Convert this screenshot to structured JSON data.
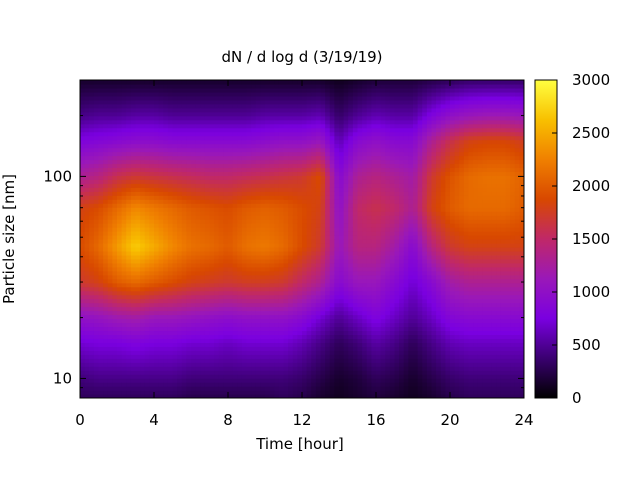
{
  "chart_data": {
    "type": "heatmap",
    "title": "dN / d log d (3/19/19)",
    "xlabel": "Time [hour]",
    "ylabel": "Particle size [nm]",
    "xlim": [
      0,
      24
    ],
    "ylim": [
      8,
      300
    ],
    "y_scale": "log",
    "x_ticks": [
      0,
      4,
      8,
      12,
      16,
      20,
      24
    ],
    "y_ticks": [
      10,
      100
    ],
    "colorbar": {
      "range": [
        0,
        3000
      ],
      "ticks": [
        0,
        500,
        1000,
        1500,
        2000,
        2500,
        3000
      ],
      "colormap": [
        "#000000",
        "#3a0070",
        "#7a00e0",
        "#9a18b8",
        "#c02868",
        "#d84800",
        "#f08000",
        "#f8c000",
        "#ffff40"
      ]
    },
    "times": [
      0,
      1,
      2,
      3,
      4,
      5,
      6,
      7,
      8,
      9,
      10,
      11,
      12,
      13,
      14,
      15,
      16,
      17,
      18,
      19,
      20,
      21,
      22,
      23,
      24
    ],
    "sizes": [
      8,
      10,
      15,
      20,
      30,
      45,
      70,
      100,
      150,
      200,
      300
    ],
    "values": [
      [
        300,
        300,
        300,
        300,
        300,
        300,
        250,
        250,
        250,
        250,
        250,
        300,
        250,
        150,
        100,
        150,
        200,
        150,
        100,
        150,
        250,
        300,
        300,
        300,
        300
      ],
      [
        400,
        450,
        450,
        450,
        450,
        450,
        400,
        400,
        400,
        400,
        400,
        400,
        350,
        250,
        150,
        200,
        300,
        250,
        150,
        250,
        350,
        400,
        400,
        400,
        400
      ],
      [
        700,
        750,
        750,
        800,
        750,
        750,
        700,
        700,
        650,
        700,
        700,
        700,
        600,
        450,
        300,
        400,
        550,
        450,
        300,
        450,
        600,
        650,
        650,
        650,
        650
      ],
      [
        1000,
        1050,
        1150,
        1200,
        1100,
        1100,
        1050,
        1000,
        950,
        1000,
        1000,
        1000,
        900,
        700,
        500,
        650,
        800,
        650,
        500,
        650,
        850,
        900,
        900,
        900,
        900
      ],
      [
        1700,
        1800,
        2000,
        2100,
        2000,
        1900,
        1800,
        1750,
        1700,
        1750,
        1750,
        1700,
        1500,
        1300,
        900,
        1100,
        1100,
        900,
        700,
        900,
        1200,
        1300,
        1300,
        1300,
        1300
      ],
      [
        1900,
        2100,
        2400,
        2700,
        2500,
        2300,
        2150,
        2100,
        2000,
        2150,
        2200,
        2100,
        1900,
        1700,
        1100,
        1400,
        1400,
        1200,
        900,
        1400,
        1700,
        1800,
        1800,
        1800,
        1800
      ],
      [
        1800,
        1900,
        2100,
        2300,
        2200,
        2100,
        2000,
        1950,
        1900,
        2000,
        2050,
        2000,
        1900,
        1800,
        1000,
        1500,
        1600,
        1500,
        1300,
        1800,
        2000,
        2100,
        2100,
        2100,
        2000
      ],
      [
        1300,
        1400,
        1600,
        1700,
        1650,
        1600,
        1550,
        1500,
        1500,
        1550,
        1600,
        1650,
        1700,
        1900,
        900,
        1300,
        1400,
        1300,
        1200,
        1700,
        1950,
        2100,
        2150,
        2150,
        2050
      ],
      [
        800,
        850,
        900,
        950,
        950,
        900,
        900,
        900,
        900,
        900,
        950,
        1000,
        1000,
        1100,
        600,
        900,
        1000,
        900,
        900,
        1300,
        1600,
        1800,
        1850,
        1850,
        1750
      ],
      [
        450,
        500,
        500,
        550,
        550,
        500,
        500,
        500,
        500,
        500,
        550,
        550,
        550,
        600,
        350,
        500,
        600,
        550,
        550,
        800,
        1000,
        1100,
        1150,
        1150,
        1100
      ],
      [
        150,
        150,
        150,
        150,
        150,
        150,
        150,
        150,
        150,
        150,
        150,
        150,
        150,
        150,
        100,
        150,
        200,
        200,
        200,
        250,
        300,
        350,
        350,
        350,
        350
      ]
    ]
  }
}
